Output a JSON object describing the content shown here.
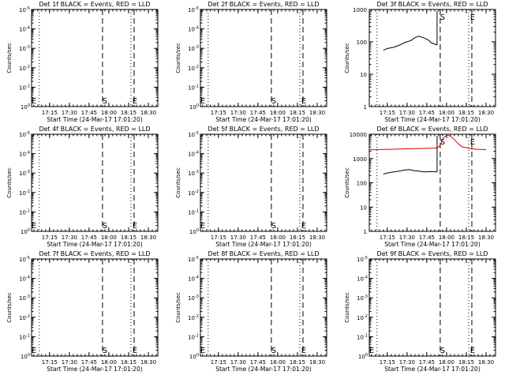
{
  "chart_data": [
    {
      "type": "line",
      "title": "Det 1f BLACK = Events, RED = LLD",
      "xlabel": "Start Time (24-Mar-17 17:01:20)",
      "ylabel": "Counts/sec",
      "x_ticks": [
        "17:15",
        "17:30",
        "17:45",
        "18:00",
        "18:15",
        "18:30"
      ],
      "y_ticks": [
        "10^0",
        "10^-1",
        "10^-2",
        "10^-3",
        "10^-4",
        "10^-5"
      ],
      "yscale": "log",
      "ylim": [
        1e-05,
        1
      ],
      "markers": [
        {
          "label": "S"
        },
        {
          "label": "E"
        }
      ],
      "series": []
    },
    {
      "type": "line",
      "title": "Det 2f BLACK = Events, RED = LLD",
      "xlabel": "Start Time (24-Mar-17 17:01:20)",
      "ylabel": "Counts/sec",
      "x_ticks": [
        "17:15",
        "17:30",
        "17:45",
        "18:00",
        "18:15",
        "18:30"
      ],
      "y_ticks": [
        "10^0",
        "10^-1",
        "10^-2",
        "10^-3",
        "10^-4",
        "10^-5"
      ],
      "yscale": "log",
      "ylim": [
        1e-05,
        1
      ],
      "markers": [
        {
          "label": "S"
        },
        {
          "label": "E"
        }
      ],
      "series": []
    },
    {
      "type": "line",
      "title": "Det 3f BLACK = Events, RED = LLD",
      "xlabel": "Start Time (24-Mar-17 17:01:20)",
      "ylabel": "Counts/sec",
      "x_ticks": [
        "17:15",
        "17:30",
        "17:45",
        "18:00",
        "18:15",
        "18:30"
      ],
      "y_ticks": [
        "1000",
        "100",
        "10",
        "1"
      ],
      "yscale": "log",
      "ylim": [
        1,
        1000
      ],
      "markers": [
        {
          "label": "S"
        },
        {
          "label": "E"
        }
      ],
      "series": [
        {
          "color": "#000000",
          "x": [
            17.2,
            17.25,
            17.33,
            17.4,
            17.47,
            17.55,
            17.6,
            17.65,
            17.72,
            17.78,
            17.8,
            17.88
          ],
          "y": [
            55,
            62,
            68,
            78,
            95,
            110,
            135,
            150,
            130,
            110,
            95,
            80
          ]
        }
      ]
    },
    {
      "type": "line",
      "title": "Det 4f BLACK = Events, RED = LLD",
      "xlabel": "Start Time (24-Mar-17 17:01:20)",
      "ylabel": "Counts/sec",
      "x_ticks": [
        "17:15",
        "17:30",
        "17:45",
        "18:00",
        "18:15",
        "18:30"
      ],
      "y_ticks": [
        "10^0",
        "10^-1",
        "10^-2",
        "10^-3",
        "10^-4",
        "10^-5"
      ],
      "yscale": "log",
      "ylim": [
        1e-05,
        1
      ],
      "markers": [
        {
          "label": "S"
        },
        {
          "label": "E"
        }
      ],
      "series": []
    },
    {
      "type": "line",
      "title": "Det 5f BLACK = Events, RED = LLD",
      "xlabel": "Start Time (24-Mar-17 17:01:20)",
      "ylabel": "Counts/sec",
      "x_ticks": [
        "17:15",
        "17:30",
        "17:45",
        "18:00",
        "18:15",
        "18:30"
      ],
      "y_ticks": [
        "10^0",
        "10^-1",
        "10^-2",
        "10^-3",
        "10^-4",
        "10^-5"
      ],
      "yscale": "log",
      "ylim": [
        1e-05,
        1
      ],
      "markers": [
        {
          "label": "S"
        },
        {
          "label": "E"
        }
      ],
      "series": []
    },
    {
      "type": "line",
      "title": "Det 6f BLACK = Events, RED = LLD",
      "xlabel": "Start Time (24-Mar-17 17:01:20)",
      "ylabel": "Counts/sec",
      "x_ticks": [
        "17:15",
        "17:30",
        "17:45",
        "18:00",
        "18:15",
        "18:30"
      ],
      "y_ticks": [
        "10000",
        "1000",
        "100",
        "10",
        "1"
      ],
      "yscale": "log",
      "ylim": [
        1,
        10000
      ],
      "markers": [
        {
          "label": "S"
        },
        {
          "label": "E"
        }
      ],
      "series": [
        {
          "color": "#000000",
          "x": [
            17.2,
            17.27,
            17.33,
            17.4,
            17.47,
            17.53,
            17.58,
            17.65,
            17.72,
            17.8,
            17.88
          ],
          "y": [
            230,
            260,
            280,
            300,
            340,
            350,
            320,
            300,
            280,
            290,
            280
          ]
        },
        {
          "color": "#dd0000",
          "x": [
            17.02,
            17.1,
            17.2,
            17.3,
            17.4,
            17.5,
            17.6,
            17.7,
            17.8,
            17.88,
            17.92,
            17.96,
            18.0,
            18.05,
            18.1,
            18.15,
            18.2,
            18.25,
            18.3,
            18.4,
            18.5
          ],
          "y": [
            2300,
            2300,
            2350,
            2400,
            2450,
            2500,
            2550,
            2600,
            2650,
            2700,
            3500,
            7000,
            9000,
            8500,
            6000,
            4000,
            3000,
            2800,
            2500,
            2400,
            2300
          ]
        }
      ]
    },
    {
      "type": "line",
      "title": "Det 7f BLACK = Events, RED = LLD",
      "xlabel": "Start Time (24-Mar-17 17:01:20)",
      "ylabel": "Counts/sec",
      "x_ticks": [
        "17:15",
        "17:30",
        "17:45",
        "18:00",
        "18:15",
        "18:30"
      ],
      "y_ticks": [
        "10^0",
        "10^-1",
        "10^-2",
        "10^-3",
        "10^-4",
        "10^-5"
      ],
      "yscale": "log",
      "ylim": [
        1e-05,
        1
      ],
      "markers": [
        {
          "label": "S"
        },
        {
          "label": "E"
        }
      ],
      "series": []
    },
    {
      "type": "line",
      "title": "Det 8f BLACK = Events, RED = LLD",
      "xlabel": "Start Time (24-Mar-17 17:01:20)",
      "ylabel": "Counts/sec",
      "x_ticks": [
        "17:15",
        "17:30",
        "17:45",
        "18:00",
        "18:15",
        "18:30"
      ],
      "y_ticks": [
        "10^0",
        "10^-1",
        "10^-2",
        "10^-3",
        "10^-4",
        "10^-5"
      ],
      "yscale": "log",
      "ylim": [
        1e-05,
        1
      ],
      "markers": [
        {
          "label": "S"
        },
        {
          "label": "E"
        }
      ],
      "series": []
    },
    {
      "type": "line",
      "title": "Det 9f BLACK = Events, RED = LLD",
      "xlabel": "Start Time (24-Mar-17 17:01:20)",
      "ylabel": "Counts/sec",
      "x_ticks": [
        "17:15",
        "17:30",
        "17:45",
        "18:00",
        "18:15",
        "18:30"
      ],
      "y_ticks": [
        "10^0",
        "10^-1",
        "10^-2",
        "10^-3",
        "10^-4",
        "10^-5"
      ],
      "yscale": "log",
      "ylim": [
        1e-05,
        1
      ],
      "markers": [
        {
          "label": "S"
        },
        {
          "label": "E"
        }
      ],
      "series": []
    }
  ]
}
